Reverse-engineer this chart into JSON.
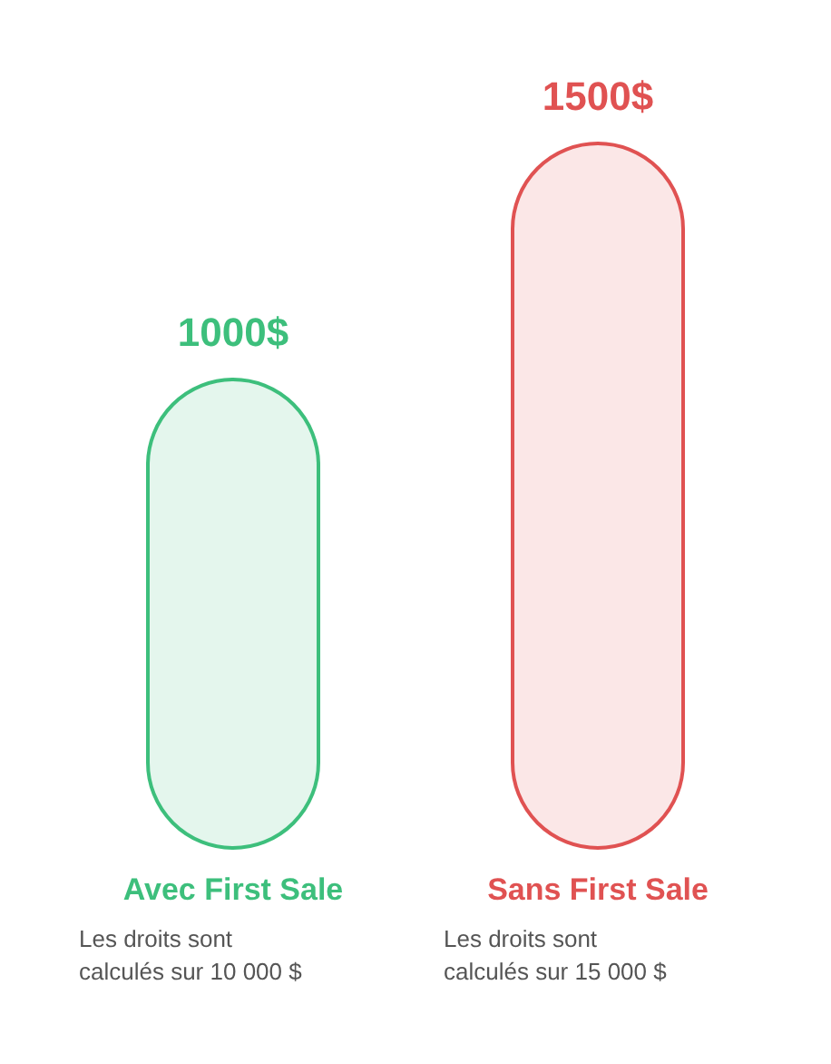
{
  "chart_data": {
    "type": "bar",
    "categories": [
      "Avec First Sale",
      "Sans First Sale"
    ],
    "values": [
      1000,
      1500
    ],
    "colors": [
      "#3dbf7c",
      "#e05252"
    ],
    "value_labels": [
      "1000$",
      "1500$"
    ],
    "annotations": [
      "Les droits sont calculés sur 10 000 $",
      "Les droits sont calculés sur 15 000 $"
    ]
  }
}
